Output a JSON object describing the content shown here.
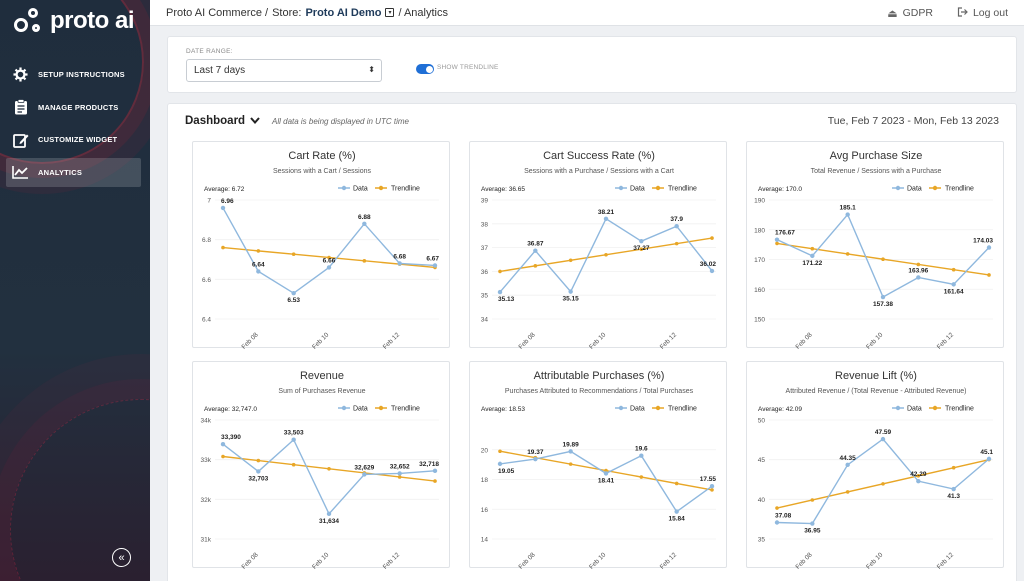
{
  "colors": {
    "data": "#8fb8de",
    "trend": "#e8a626",
    "sidebar": "#1f2d3d",
    "accent": "#1f6fd6"
  },
  "logo": {
    "text": "proto ai"
  },
  "sidebar": {
    "items": [
      {
        "icon": "gear-icon",
        "label": "SETUP INSTRUCTIONS"
      },
      {
        "icon": "clipboard-icon",
        "label": "MANAGE PRODUCTS"
      },
      {
        "icon": "edit-icon",
        "label": "CUSTOMIZE WIDGET"
      },
      {
        "icon": "line-chart-icon",
        "label": "ANALYTICS",
        "active": true
      }
    ],
    "collapse": "«"
  },
  "topbar": {
    "crumb1": "Proto AI Commerce /",
    "crumb2_label": "Store:",
    "store": "Proto AI Demo",
    "crumb3": "/ Analytics",
    "gdpr": "GDPR",
    "logout": "Log out"
  },
  "filters": {
    "date_label": "DATE RANGE:",
    "date_value": "Last 7 days",
    "trend_label": "SHOW TRENDLINE",
    "trend_on": true
  },
  "dashboard": {
    "title": "Dashboard",
    "note": "All data is being displayed in UTC time",
    "range": "Tue, Feb 7 2023 - Mon, Feb 13 2023"
  },
  "chart_data": [
    {
      "type": "line",
      "title": "Cart Rate (%)",
      "subtitle": "Sessions with a Cart / Sessions",
      "average": "Average: 6.72",
      "legend": [
        "Data",
        "Trendline"
      ],
      "ylim": [
        6.4,
        7.0
      ],
      "yticks": [
        "6.4",
        "6.6",
        "6.8",
        "7"
      ],
      "yticks_v": [
        6.4,
        6.6,
        6.8,
        7.0
      ],
      "xticks": [
        "Feb 08",
        "Feb 10",
        "Feb 12"
      ],
      "values": [
        6.96,
        6.64,
        6.53,
        6.66,
        6.88,
        6.68,
        6.67
      ],
      "labels": [
        "6.96",
        "6.64",
        "6.53",
        "6.66",
        "6.88",
        "6.68",
        "6.67"
      ],
      "trend": [
        6.76,
        6.66
      ]
    },
    {
      "type": "line",
      "title": "Cart Success Rate (%)",
      "subtitle": "Sessions with a Purchase / Sessions with a Cart",
      "average": "Average: 36.65",
      "legend": [
        "Data",
        "Trendline"
      ],
      "ylim": [
        34,
        39
      ],
      "yticks": [
        "34",
        "35",
        "36",
        "37",
        "38",
        "39"
      ],
      "yticks_v": [
        34,
        35,
        36,
        37,
        38,
        39
      ],
      "xticks": [
        "Feb 08",
        "Feb 10",
        "Feb 12"
      ],
      "values": [
        35.13,
        36.87,
        35.15,
        38.21,
        37.27,
        37.9,
        36.02
      ],
      "labels": [
        "35.13",
        "36.87",
        "35.15",
        "38.21",
        "37.27",
        "37.9",
        "36.02"
      ],
      "trend": [
        36.0,
        37.4
      ]
    },
    {
      "type": "line",
      "title": "Avg Purchase Size",
      "subtitle": "Total Revenue / Sessions with a Purchase",
      "average": "Average: 170.0",
      "legend": [
        "Data",
        "Trendline"
      ],
      "ylim": [
        150,
        190
      ],
      "yticks": [
        "150",
        "160",
        "170",
        "180",
        "190"
      ],
      "yticks_v": [
        150,
        160,
        170,
        180,
        190
      ],
      "xticks": [
        "Feb 08",
        "Feb 10",
        "Feb 12"
      ],
      "values": [
        176.67,
        171.22,
        185.1,
        157.38,
        163.96,
        161.64,
        174.03
      ],
      "labels": [
        "176.67",
        "171.22",
        "185.1",
        "157.38",
        "163.96",
        "161.64",
        "174.03"
      ],
      "trend": [
        175.4,
        164.8
      ]
    },
    {
      "type": "line",
      "title": "Revenue",
      "subtitle": "Sum of Purchases Revenue",
      "average": "Average: 32,747.0",
      "legend": [
        "Data",
        "Trendline"
      ],
      "ylim": [
        31000,
        34000
      ],
      "yticks": [
        "31k",
        "32k",
        "33k",
        "34k"
      ],
      "yticks_v": [
        31000,
        32000,
        33000,
        34000
      ],
      "xticks": [
        "Feb 08",
        "Feb 10",
        "Feb 12"
      ],
      "values": [
        33390,
        32703,
        33503,
        31634,
        32629,
        32652,
        32718
      ],
      "labels": [
        "33,390",
        "32,703",
        "33,503",
        "31,634",
        "32,629",
        "32,652",
        "32,718"
      ],
      "trend": [
        33080,
        32460
      ]
    },
    {
      "type": "line",
      "title": "Attributable Purchases (%)",
      "subtitle": "Purchases Attributed to Recommendations / Total Purchases",
      "average": "Average: 18.53",
      "legend": [
        "Data",
        "Trendline"
      ],
      "ylim": [
        14,
        22
      ],
      "yticks": [
        "14",
        "16",
        "18",
        "20"
      ],
      "yticks_v": [
        14,
        16,
        18,
        20
      ],
      "xticks": [
        "Feb 08",
        "Feb 10",
        "Feb 12"
      ],
      "values": [
        19.05,
        19.37,
        19.89,
        18.41,
        19.6,
        15.84,
        17.55
      ],
      "labels": [
        "19.05",
        "19.37",
        "19.89",
        "18.41",
        "19.6",
        "15.84",
        "17.55"
      ],
      "trend": [
        19.9,
        17.3
      ]
    },
    {
      "type": "line",
      "title": "Revenue Lift (%)",
      "subtitle": "Attributed Revenue / (Total Revenue - Attributed Revenue)",
      "average": "Average: 42.09",
      "legend": [
        "Data",
        "Trendline"
      ],
      "ylim": [
        35,
        50
      ],
      "yticks": [
        "35",
        "40",
        "45",
        "50"
      ],
      "yticks_v": [
        35,
        40,
        45,
        50
      ],
      "xticks": [
        "Feb 08",
        "Feb 10",
        "Feb 12"
      ],
      "values": [
        37.08,
        36.95,
        44.35,
        47.59,
        42.29,
        41.3,
        45.1
      ],
      "labels": [
        "37.08",
        "36.95",
        "44.35",
        "47.59",
        "42.29",
        "41.3",
        "45.1"
      ],
      "trend": [
        38.9,
        45.0
      ]
    }
  ]
}
